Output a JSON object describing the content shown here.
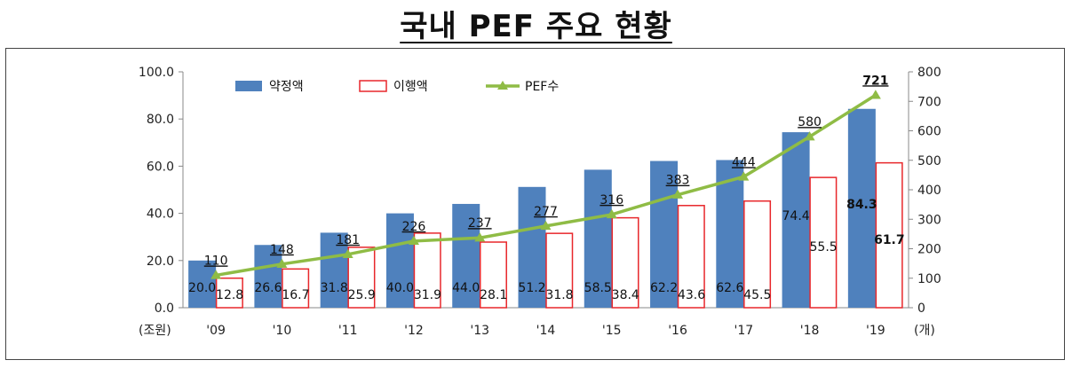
{
  "title": "국내 PEF 주요 현황",
  "chart_data": {
    "type": "bar",
    "categories": [
      "'09",
      "'10",
      "'11",
      "'12",
      "'13",
      "'14",
      "'15",
      "'16",
      "'17",
      "'18",
      "'19"
    ],
    "series": [
      {
        "name": "약정액",
        "kind": "bar",
        "color": "#4f81bd",
        "values": [
          20.0,
          26.6,
          31.8,
          40.0,
          44.0,
          51.2,
          58.5,
          62.2,
          62.6,
          74.4,
          84.3
        ]
      },
      {
        "name": "이행액",
        "kind": "bar",
        "color": "#ffffff",
        "stroke": "#e8272b",
        "values": [
          12.8,
          16.7,
          25.9,
          31.9,
          28.1,
          31.8,
          38.4,
          43.6,
          45.5,
          55.5,
          61.7
        ]
      },
      {
        "name": "PEF수",
        "kind": "line",
        "axis": "right",
        "color": "#8fbc45",
        "values": [
          110,
          148,
          181,
          226,
          237,
          277,
          316,
          383,
          444,
          580,
          721
        ]
      }
    ],
    "y_left": {
      "ticks": [
        "0.0",
        "20.0",
        "40.0",
        "60.0",
        "80.0",
        "100.0"
      ],
      "min": 0,
      "max": 100,
      "unit": "(조원)"
    },
    "y_right": {
      "ticks": [
        "0",
        "100",
        "200",
        "300",
        "400",
        "500",
        "600",
        "700",
        "800"
      ],
      "min": 0,
      "max": 800,
      "unit": "(개)"
    },
    "legend_position": "top-left",
    "grid": false
  }
}
